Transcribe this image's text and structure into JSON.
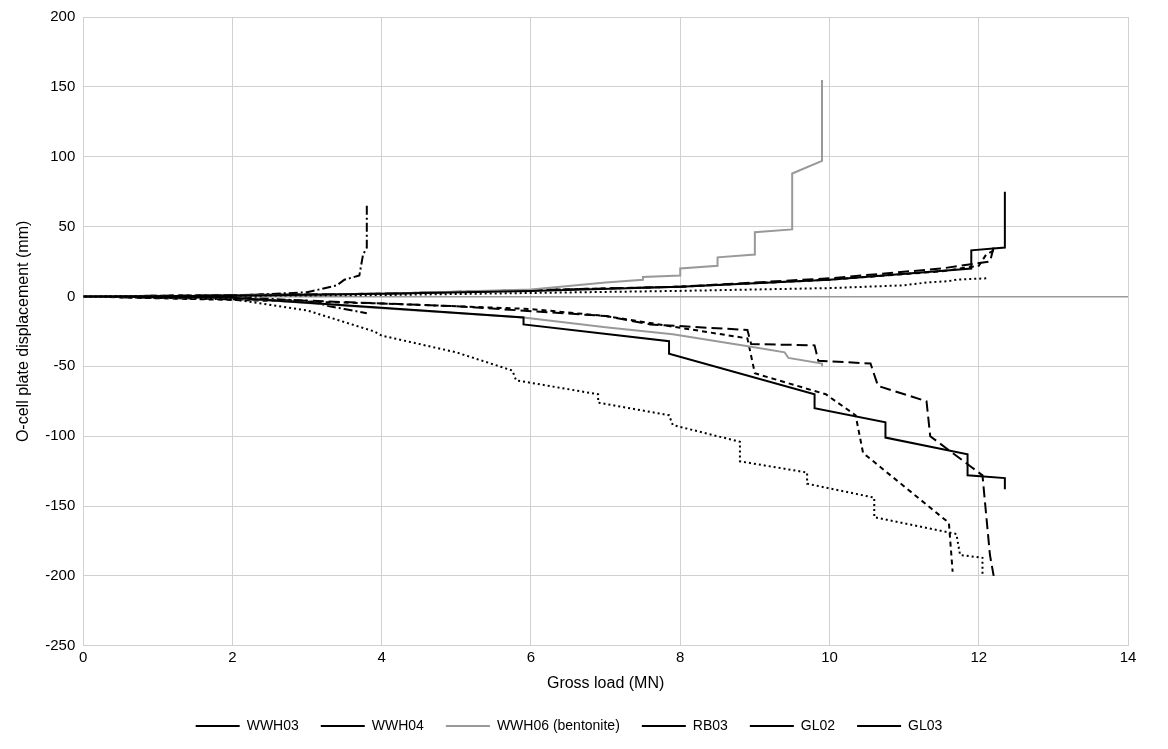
{
  "chart_data": {
    "type": "line",
    "x_label": "Gross load (MN)",
    "y_label": "O-cell plate displacement (mm)",
    "xlim": [
      0,
      14
    ],
    "xticks": [
      0,
      2,
      4,
      6,
      8,
      10,
      12,
      14
    ],
    "ylim": [
      -250,
      200
    ],
    "yticks": [
      -250,
      -200,
      -150,
      -100,
      -50,
      0,
      50,
      100,
      150,
      200
    ],
    "grid": true,
    "legend": "bottom",
    "series": [
      {
        "name": "WWH03",
        "color": "#000000",
        "line_style": "solid",
        "x": [
          12.35,
          12.35,
          11.9,
          11.9,
          10,
          8,
          6,
          4,
          2,
          0,
          2,
          4,
          5.9,
          5.9,
          7.85,
          7.85,
          9.8,
          9.8,
          10.75,
          10.75,
          11.85,
          11.85,
          12.35,
          12.35
        ],
        "values": [
          75,
          35,
          33,
          20,
          12,
          7,
          4,
          2,
          0.5,
          0,
          -1,
          -8,
          -15,
          -20,
          -32,
          -41,
          -70,
          -80,
          -90,
          -101,
          -113,
          -128,
          -130,
          -138
        ]
      },
      {
        "name": "WWH04",
        "color": "#000000",
        "line_style": "dotted",
        "x": [
          12.1,
          11.7,
          11.6,
          11.3,
          11,
          10,
          8,
          4,
          0,
          2,
          3,
          3.9,
          4,
          5,
          5.75,
          5.8,
          6.9,
          6.9,
          7.85,
          7.9,
          8.8,
          8.8,
          9.7,
          9.7,
          10.6,
          10.6,
          11.7,
          11.75,
          12.05,
          12.05
        ],
        "values": [
          13,
          12,
          11,
          10,
          8,
          6,
          4,
          1,
          0,
          -2,
          -10,
          -25,
          -28,
          -40,
          -53,
          -60,
          -70,
          -76,
          -85,
          -92,
          -104,
          -118,
          -126,
          -134,
          -144,
          -158,
          -170,
          -185,
          -187,
          -200
        ]
      },
      {
        "name": "WWH06 (bentonite)",
        "color": "#999999",
        "line_style": "solid",
        "x": [
          9.9,
          9.9,
          9.5,
          9.5,
          9,
          9,
          8.5,
          8.5,
          8,
          8,
          7.5,
          7.5,
          7,
          6,
          4,
          2,
          0,
          2,
          3.9,
          5.9,
          7,
          7.9,
          8.95,
          9.4,
          9.45,
          9.9,
          9.9
        ],
        "values": [
          155,
          97,
          88,
          48,
          46,
          30,
          28,
          22,
          20,
          15,
          14,
          12,
          10,
          5,
          2,
          0.5,
          0,
          -1,
          -8,
          -15,
          -22,
          -27,
          -36,
          -40,
          -44,
          -48,
          -50
        ]
      },
      {
        "name": "RB03",
        "color": "#000000",
        "line_style": "dashdot",
        "x": [
          3.8,
          3.8,
          3.75,
          3.7,
          3.5,
          3.4,
          3,
          2,
          0,
          2,
          3,
          3.3,
          3.5,
          3.8
        ],
        "values": [
          65,
          35,
          30,
          15,
          12,
          8,
          3,
          0.5,
          0,
          -0.5,
          -3,
          -7,
          -9,
          -12
        ]
      },
      {
        "name": "GL02",
        "color": "#000000",
        "line_style": "dashed",
        "x": [
          12.2,
          12.1,
          12,
          11.5,
          10,
          8,
          4,
          0,
          4,
          6,
          7,
          8.9,
          9,
          9.95,
          10.35,
          10.45,
          11.6,
          11.65
        ],
        "values": [
          33,
          30,
          22,
          18,
          12,
          7,
          2,
          0,
          -5,
          -9,
          -14,
          -30,
          -55,
          -70,
          -85,
          -112,
          -162,
          -197
        ]
      },
      {
        "name": "GL03",
        "color": "#000000",
        "line_style": "longdash",
        "x": [
          12.2,
          12.15,
          11.5,
          10,
          8,
          4,
          0,
          3,
          5,
          7,
          7.6,
          8.9,
          8.95,
          9.8,
          9.85,
          10.55,
          10.65,
          11.3,
          11.35,
          11.9,
          12.05,
          12.15,
          12.2
        ],
        "values": [
          35,
          25,
          20,
          13,
          7,
          2,
          0,
          -3,
          -7,
          -14,
          -20,
          -24,
          -34,
          -35,
          -46,
          -48,
          -64,
          -75,
          -100,
          -122,
          -128,
          -185,
          -200
        ]
      }
    ]
  }
}
